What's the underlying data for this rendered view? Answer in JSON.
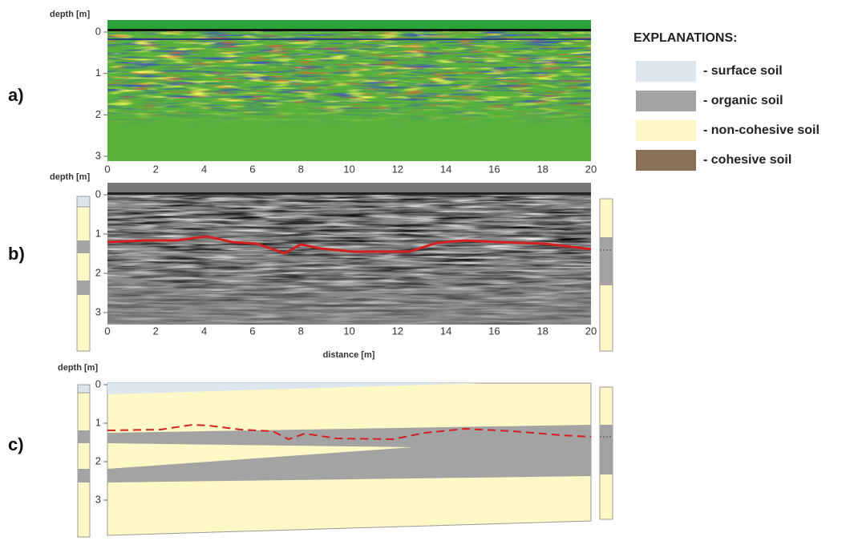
{
  "panels": [
    {
      "label": "a)",
      "y_axis_label": "depth [m]",
      "yticks": [
        0,
        1,
        2,
        3
      ],
      "xticks": [
        0,
        2,
        4,
        6,
        8,
        10,
        12,
        14,
        16,
        18,
        20
      ]
    },
    {
      "label": "b)",
      "y_axis_label": "depth [m]",
      "yticks": [
        0,
        1,
        2,
        3
      ],
      "xticks": [
        0,
        2,
        4,
        6,
        8,
        10,
        12,
        14,
        16,
        18,
        20
      ],
      "x_axis_label": "distance [m]"
    },
    {
      "label": "c)",
      "y_axis_label": "depth [m]",
      "yticks": [
        0,
        1,
        2,
        3
      ]
    }
  ],
  "legend": {
    "title": "EXPLANATIONS:",
    "items": [
      {
        "label": "- surface soil",
        "color": "#dde6ee"
      },
      {
        "label": "- organic soil",
        "color": "#a3a3a3"
      },
      {
        "label": "- non-cohesive soil",
        "color": "#fdf8c6"
      },
      {
        "label": "- cohesive soil",
        "color": "#8a7257"
      }
    ]
  }
}
